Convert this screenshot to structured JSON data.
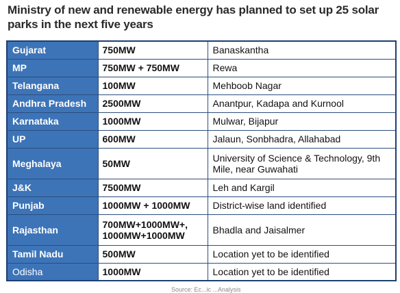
{
  "title": "Ministry of new and renewable energy has planned to set up 25 solar parks in the next five years",
  "table": {
    "rows": [
      {
        "state": "Gujarat",
        "capacity": "750MW",
        "location": "Banaskantha"
      },
      {
        "state": "MP",
        "capacity": "750MW + 750MW",
        "location": "Rewa"
      },
      {
        "state": "Telangana",
        "capacity": "100MW",
        "location": "Mehboob Nagar"
      },
      {
        "state": "Andhra Pradesh",
        "capacity": "2500MW",
        "location": "Anantpur, Kadapa and Kurnool"
      },
      {
        "state": "Karnataka",
        "capacity": "1000MW",
        "location": "Mulwar, Bijapur"
      },
      {
        "state": "UP",
        "capacity": "600MW",
        "location": "Jalaun, Sonbhadra, Allahabad"
      },
      {
        "state": "Meghalaya",
        "capacity": "50MW",
        "location": "University of Science & Technology, 9th Mile, near Guwahati"
      },
      {
        "state": "J&K",
        "capacity": "7500MW",
        "location": "Leh and Kargil"
      },
      {
        "state": "Punjab",
        "capacity": "1000MW + 1000MW",
        "location": "District-wise land identified"
      },
      {
        "state": "Rajasthan",
        "capacity": "700MW+1000MW+, 1000MW+1000MW",
        "location": "Bhadla and Jaisalmer"
      },
      {
        "state": "Tamil Nadu",
        "capacity": "500MW",
        "location": "Location yet to be identified"
      },
      {
        "state": "Odisha",
        "capacity": "1000MW",
        "location": "Location yet to be identified"
      }
    ]
  },
  "footer": "Source: Ec...ic ...Analysis"
}
